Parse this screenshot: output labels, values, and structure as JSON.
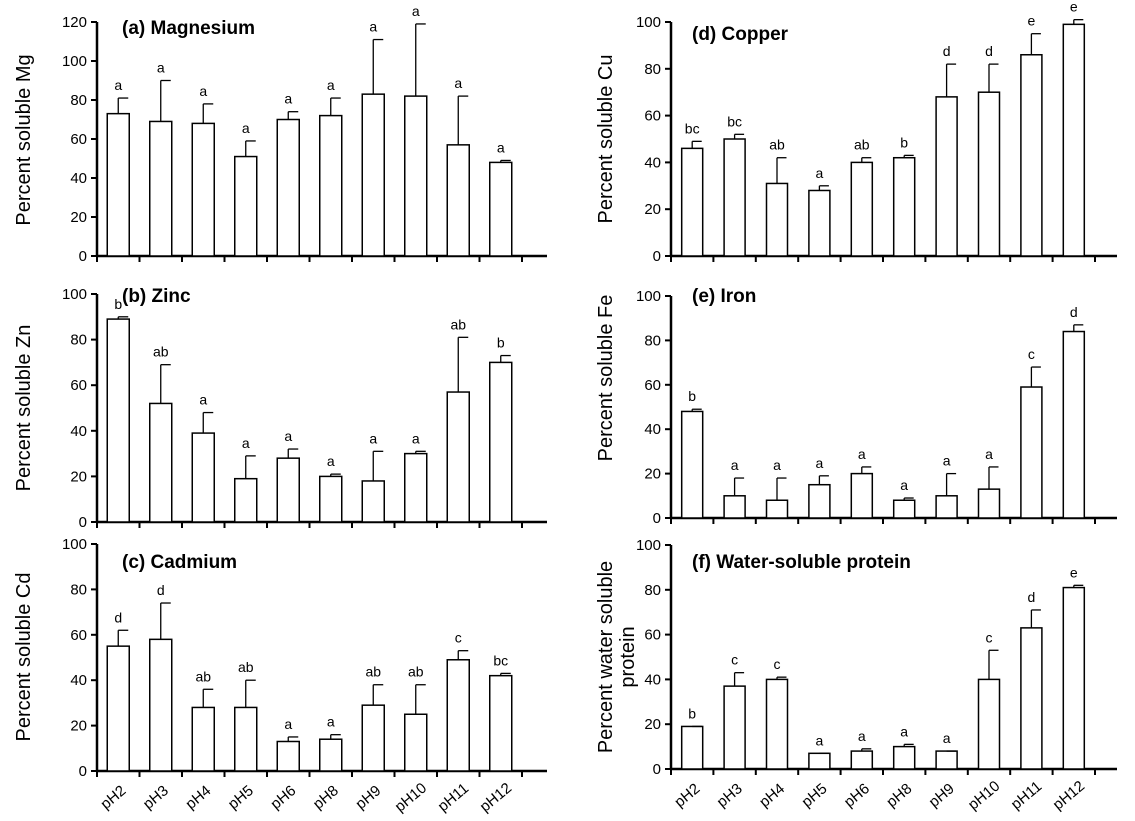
{
  "chart_data": [
    {
      "type": "bar",
      "title": "(a) Magnesium",
      "ylabel": "Percent soluble Mg",
      "ylim": [
        0,
        120
      ],
      "yticks": [
        0,
        20,
        40,
        60,
        80,
        100,
        120
      ],
      "categories": [
        "pH2",
        "pH3",
        "pH4",
        "pH5",
        "pH6",
        "pH8",
        "pH9",
        "pH10",
        "pH11",
        "pH12"
      ],
      "values": [
        73,
        69,
        68,
        51,
        70,
        72,
        83,
        82,
        57,
        48
      ],
      "errors": [
        8,
        21,
        10,
        8,
        4,
        9,
        28,
        37,
        25,
        1
      ],
      "labels": [
        "a",
        "a",
        "a",
        "a",
        "a",
        "a",
        "a",
        "a",
        "a",
        "a"
      ],
      "show_categories": false
    },
    {
      "type": "bar",
      "title": "(b) Zinc",
      "ylabel": "Percent soluble Zn",
      "ylim": [
        0,
        100
      ],
      "yticks": [
        0,
        20,
        40,
        60,
        80,
        100
      ],
      "categories": [
        "pH2",
        "pH3",
        "pH4",
        "pH5",
        "pH6",
        "pH8",
        "pH9",
        "pH10",
        "pH11",
        "pH12"
      ],
      "values": [
        89,
        52,
        39,
        19,
        28,
        20,
        18,
        30,
        57,
        70
      ],
      "errors": [
        1,
        17,
        9,
        10,
        4,
        1,
        13,
        1,
        24,
        3
      ],
      "labels": [
        "b",
        "ab",
        "a",
        "a",
        "a",
        "a",
        "a",
        "a",
        "ab",
        "b"
      ],
      "show_categories": false
    },
    {
      "type": "bar",
      "title": "(c) Cadmium",
      "ylabel": "Percent soluble Cd",
      "ylim": [
        0,
        100
      ],
      "yticks": [
        0,
        20,
        40,
        60,
        80,
        100
      ],
      "categories": [
        "pH2",
        "pH3",
        "pH4",
        "pH5",
        "pH6",
        "pH8",
        "pH9",
        "pH10",
        "pH11",
        "pH12"
      ],
      "values": [
        55,
        58,
        28,
        28,
        13,
        14,
        29,
        25,
        49,
        42
      ],
      "errors": [
        7,
        16,
        8,
        12,
        2,
        2,
        9,
        13,
        4,
        1
      ],
      "labels": [
        "d",
        "d",
        "ab",
        "ab",
        "a",
        "a",
        "ab",
        "ab",
        "c",
        "bc"
      ],
      "show_categories": true
    },
    {
      "type": "bar",
      "title": "(d) Copper",
      "ylabel": "Percent soluble Cu",
      "ylim": [
        0,
        100
      ],
      "yticks": [
        0,
        20,
        40,
        60,
        80,
        100
      ],
      "categories": [
        "pH2",
        "pH3",
        "pH4",
        "pH5",
        "pH6",
        "pH8",
        "pH9",
        "pH10",
        "pH11",
        "pH12"
      ],
      "values": [
        46,
        50,
        31,
        28,
        40,
        42,
        68,
        70,
        86,
        99
      ],
      "errors": [
        3,
        2,
        11,
        2,
        2,
        1,
        14,
        12,
        9,
        2
      ],
      "labels": [
        "bc",
        "bc",
        "ab",
        "a",
        "ab",
        "b",
        "d",
        "d",
        "e",
        "e"
      ],
      "show_categories": false
    },
    {
      "type": "bar",
      "title": "(e) Iron",
      "ylabel": "Percent soluble Fe",
      "ylim": [
        0,
        100
      ],
      "yticks": [
        0,
        20,
        40,
        60,
        80,
        100
      ],
      "categories": [
        "pH2",
        "pH3",
        "pH4",
        "pH5",
        "pH6",
        "pH8",
        "pH9",
        "pH10",
        "pH11",
        "pH12"
      ],
      "values": [
        48,
        10,
        8,
        15,
        20,
        8,
        10,
        13,
        59,
        84
      ],
      "errors": [
        1,
        8,
        10,
        4,
        3,
        1,
        10,
        10,
        9,
        3
      ],
      "labels": [
        "b",
        "a",
        "a",
        "a",
        "a",
        "a",
        "a",
        "a",
        "c",
        "d"
      ],
      "show_categories": false
    },
    {
      "type": "bar",
      "title": "(f) Water-soluble protein",
      "ylabel": "Percent  water soluble protein",
      "ylim": [
        0,
        100
      ],
      "yticks": [
        0,
        20,
        40,
        60,
        80,
        100
      ],
      "categories": [
        "pH2",
        "pH3",
        "pH4",
        "pH5",
        "pH6",
        "pH8",
        "pH9",
        "pH10",
        "pH11",
        "pH12"
      ],
      "values": [
        19,
        37,
        40,
        7,
        8,
        10,
        8,
        40,
        63,
        81
      ],
      "errors": [
        0,
        6,
        1,
        0,
        1,
        1,
        0,
        13,
        8,
        1
      ],
      "labels": [
        "b",
        "c",
        "c",
        "a",
        "a",
        "a",
        "a",
        "c",
        "d",
        "e"
      ],
      "show_categories": true
    }
  ]
}
